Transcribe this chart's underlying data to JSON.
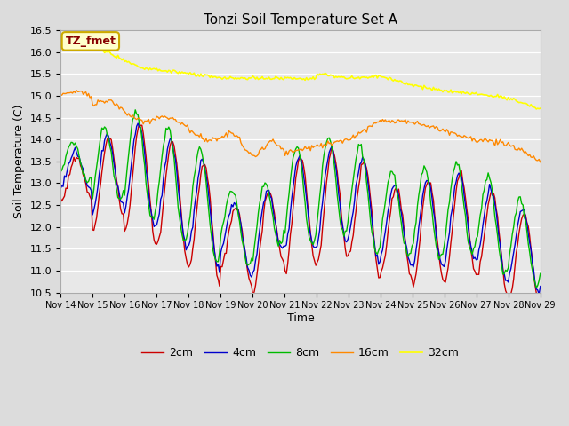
{
  "title": "Tonzi Soil Temperature Set A",
  "xlabel": "Time",
  "ylabel": "Soil Temperature (C)",
  "ylim": [
    10.5,
    16.5
  ],
  "background_color": "#dcdcdc",
  "plot_bg_color": "#e8e8e8",
  "grid_color": "white",
  "annotation_text": "TZ_fmet",
  "annotation_bg": "#ffffcc",
  "annotation_border": "#ccaa00",
  "annotation_text_color": "#880000",
  "x_tick_labels": [
    "Nov 14",
    "Nov 15",
    "Nov 16",
    "Nov 17",
    "Nov 18",
    "Nov 19",
    "Nov 20",
    "Nov 21",
    "Nov 22",
    "Nov 23",
    "Nov 24",
    "Nov 25",
    "Nov 26",
    "Nov 27",
    "Nov 28",
    "Nov 29"
  ],
  "legend_entries": [
    "2cm",
    "4cm",
    "8cm",
    "16cm",
    "32cm"
  ],
  "line_colors": [
    "#cc0000",
    "#0000cc",
    "#00bb00",
    "#ff8800",
    "#ffff00"
  ],
  "line_widths": [
    1.0,
    1.0,
    1.0,
    1.0,
    1.2
  ]
}
